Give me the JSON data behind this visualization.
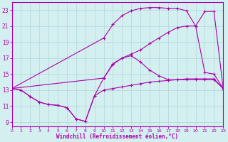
{
  "xlabel": "Windchill (Refroidissement éolien,°C)",
  "xlim": [
    0,
    23
  ],
  "ylim": [
    8.5,
    24
  ],
  "xticks": [
    0,
    1,
    2,
    3,
    4,
    5,
    6,
    7,
    8,
    9,
    10,
    11,
    12,
    13,
    14,
    15,
    16,
    17,
    18,
    19,
    20,
    21,
    22,
    23
  ],
  "yticks": [
    9,
    11,
    13,
    15,
    17,
    19,
    21,
    23
  ],
  "bg_color": "#d4efef",
  "grid_color": "#b0d8d8",
  "line_color": "#aa00aa",
  "c1x": [
    0,
    1,
    2,
    3,
    4,
    5,
    6,
    7,
    8,
    9,
    10,
    11,
    12,
    13,
    14,
    15,
    16,
    17,
    18,
    19,
    20,
    21,
    22,
    23
  ],
  "c1y": [
    13.2,
    13.0,
    12.2,
    11.5,
    11.2,
    11.1,
    10.8,
    9.4,
    9.1,
    12.3,
    13.0,
    13.2,
    13.4,
    13.6,
    13.8,
    14.0,
    14.1,
    14.2,
    14.3,
    14.4,
    14.4,
    14.4,
    14.4,
    13.2
  ],
  "c2x": [
    0,
    1,
    2,
    3,
    4,
    5,
    6,
    7,
    8,
    9,
    10,
    11,
    12,
    13,
    14,
    15,
    16,
    17,
    18,
    19,
    20,
    21,
    22,
    23
  ],
  "c2y": [
    13.2,
    13.0,
    12.2,
    11.5,
    11.2,
    11.1,
    10.8,
    9.4,
    9.1,
    12.3,
    14.5,
    16.2,
    17.0,
    17.3,
    16.5,
    15.5,
    14.8,
    14.3,
    14.3,
    14.3,
    14.3,
    14.3,
    14.3,
    13.2
  ],
  "c3x": [
    0,
    10,
    11,
    12,
    13,
    14,
    15,
    16,
    17,
    18,
    19,
    20,
    21,
    22,
    23
  ],
  "c3y": [
    13.2,
    19.5,
    21.2,
    22.3,
    22.9,
    23.2,
    23.3,
    23.3,
    23.2,
    23.2,
    22.9,
    21.0,
    22.8,
    22.8,
    13.2
  ],
  "c4x": [
    0,
    10,
    11,
    12,
    13,
    14,
    15,
    16,
    17,
    18,
    19,
    20,
    21,
    22,
    23
  ],
  "c4y": [
    13.2,
    14.5,
    16.3,
    17.0,
    17.5,
    18.0,
    18.8,
    19.5,
    20.2,
    20.8,
    21.0,
    21.0,
    15.2,
    15.0,
    13.2
  ]
}
